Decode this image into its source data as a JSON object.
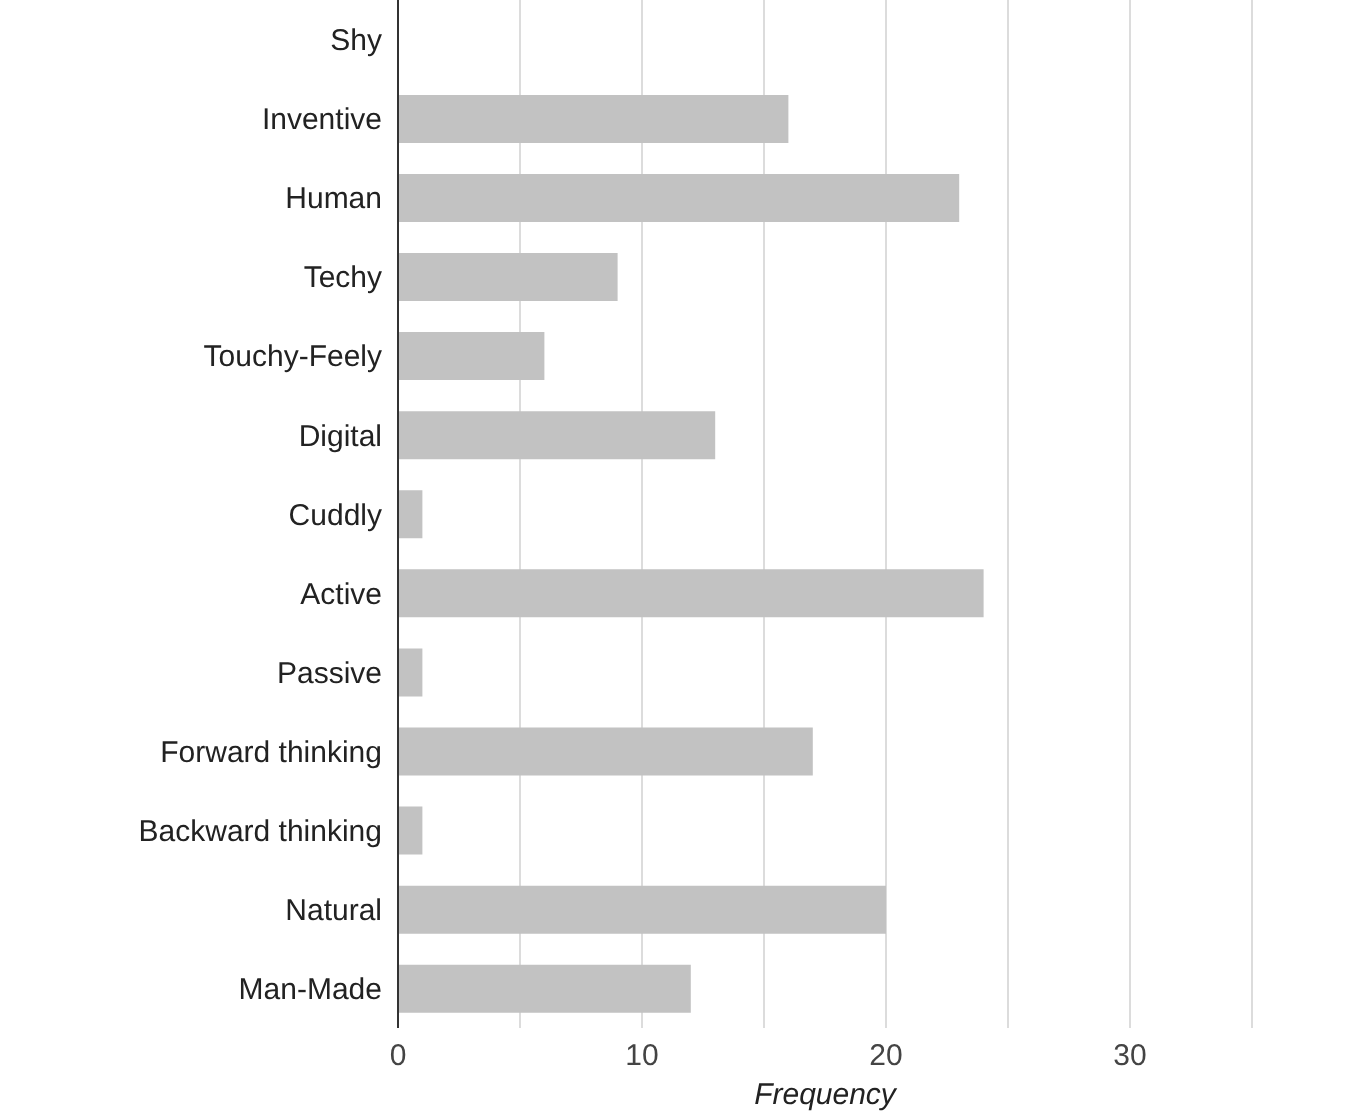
{
  "chart_data": {
    "type": "bar",
    "orientation": "horizontal",
    "xlabel": "Frequency",
    "categories": [
      "Shy",
      "Inventive",
      "Human",
      "Techy",
      "Touchy-Feely",
      "Digital",
      "Cuddly",
      "Active",
      "Passive",
      "Forward thinking",
      "Backward thinking",
      "Natural",
      "Man-Made"
    ],
    "values": [
      0,
      16,
      23,
      9,
      6,
      13,
      1,
      24,
      1,
      17,
      1,
      20,
      12
    ],
    "color": "#c2c2c2",
    "xlim": [
      0,
      35
    ],
    "xticks": [
      0,
      {
        "value": 5,
        "label": null
      },
      10,
      {
        "value": 15,
        "label": null
      },
      20,
      {
        "value": 25,
        "label": null
      },
      30,
      {
        "value": 35,
        "label": null
      }
    ],
    "grid": "x"
  }
}
